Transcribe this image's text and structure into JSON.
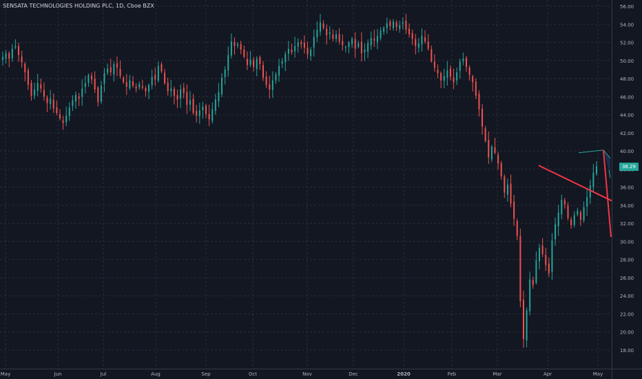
{
  "title": "SENSATA TECHNOLOGIES HOLDING PLC, 1D, Cboe BZX",
  "last_price_label": "38.29",
  "colors": {
    "background": "#131722",
    "up": "#26a69a",
    "down": "#ef5350",
    "grid": "#2a2e39",
    "text": "#b2b5be",
    "trendline_red": "#f23645",
    "channel_fill": "#1e3a5f"
  },
  "chart_data": {
    "type": "candlestick",
    "ylim": [
      17,
      57
    ],
    "yticks": [
      18,
      20,
      22,
      24,
      26,
      28,
      30,
      32,
      34,
      36,
      38,
      40,
      42,
      44,
      46,
      48,
      50,
      52,
      54,
      56
    ],
    "ytick_labels": [
      "18.00",
      "20.00",
      "22.00",
      "24.00",
      "26.00",
      "28.00",
      "30.00",
      "32.00",
      "34.00",
      "36.00",
      "38.00",
      "40.00",
      "42.00",
      "44.00",
      "46.00",
      "48.00",
      "50.00",
      "52.00",
      "54.00",
      "56.00"
    ],
    "xlabels": [
      "May",
      "Jun",
      "Jul",
      "Aug",
      "Sep",
      "Oct",
      "Nov",
      "Dec",
      "2020",
      "Feb",
      "Mar",
      "Apr",
      "May"
    ],
    "grid": true,
    "series": [
      {
        "closes": [
          50.4,
          50.8,
          50.2,
          51.3,
          51.6,
          50.6,
          49.8,
          48.7,
          47.3,
          46.1,
          46.8,
          47.5,
          46.9,
          46.0,
          45.3,
          45.8,
          44.7,
          44.2,
          43.6,
          43.1,
          43.9,
          44.8,
          45.6,
          46.2,
          45.8,
          46.9,
          47.5,
          48.4,
          47.9,
          46.8,
          45.4,
          47.2,
          48.6,
          49.1,
          48.7,
          49.6,
          49.2,
          48.3,
          47.6,
          47.1,
          47.8,
          47.2,
          46.9,
          47.4,
          47.0,
          46.6,
          47.3,
          48.2,
          47.9,
          49.4,
          48.8,
          47.5,
          46.6,
          46.9,
          46.1,
          45.7,
          46.8,
          46.4,
          45.1,
          45.6,
          44.2,
          43.9,
          44.5,
          44.9,
          44.1,
          43.5,
          44.6,
          45.7,
          46.5,
          48.1,
          49.0,
          50.6,
          52.1,
          51.6,
          51.8,
          51.2,
          50.4,
          49.5,
          50.1,
          49.3,
          50.2,
          49.6,
          48.1,
          47.3,
          46.8,
          47.8,
          48.5,
          49.4,
          49.9,
          50.7,
          51.3,
          50.9,
          51.6,
          52.0,
          51.8,
          51.4,
          50.7,
          51.2,
          52.6,
          53.4,
          54.2,
          53.6,
          52.8,
          53.1,
          52.4,
          52.9,
          52.1,
          51.7,
          51.5,
          52.0,
          52.4,
          51.3,
          51.9,
          50.8,
          51.2,
          51.9,
          52.5,
          52.2,
          52.7,
          53.3,
          53.6,
          54.1,
          53.8,
          54.3,
          53.7,
          53.9,
          54.2,
          53.4,
          52.9,
          52.4,
          51.6,
          51.9,
          52.7,
          52.1,
          51.3,
          49.9,
          49.2,
          48.6,
          47.8,
          48.3,
          48.9,
          48.2,
          47.6,
          48.7,
          49.9,
          50.2,
          49.3,
          48.4,
          47.6,
          46.1,
          44.6,
          42.7,
          41.1,
          39.3,
          40.5,
          39.8,
          38.6,
          37.2,
          35.4,
          36.3,
          34.2,
          32.5,
          30.6,
          23.4,
          19.2,
          22.4,
          25.8,
          25.2,
          27.9,
          29.3,
          28.6,
          27.4,
          26.5,
          30.1,
          31.9,
          33.2,
          34.6,
          34.1,
          32.6,
          31.8,
          32.9,
          33.4,
          32.4,
          33.8,
          34.9,
          36.2,
          37.6,
          38.29
        ]
      }
    ],
    "drawings": [
      {
        "type": "trendline",
        "label": "red-descending-trendline",
        "color": "#f23645",
        "x_from_bar": 170,
        "y_from": 38.5,
        "x_to_bar": 195,
        "y_to": 34.6
      },
      {
        "type": "channel",
        "label": "descending-channel",
        "color": "#26a69a",
        "upper": [
          40.0,
          39.1
        ],
        "lower": [
          37.9,
          37.0
        ]
      }
    ]
  }
}
